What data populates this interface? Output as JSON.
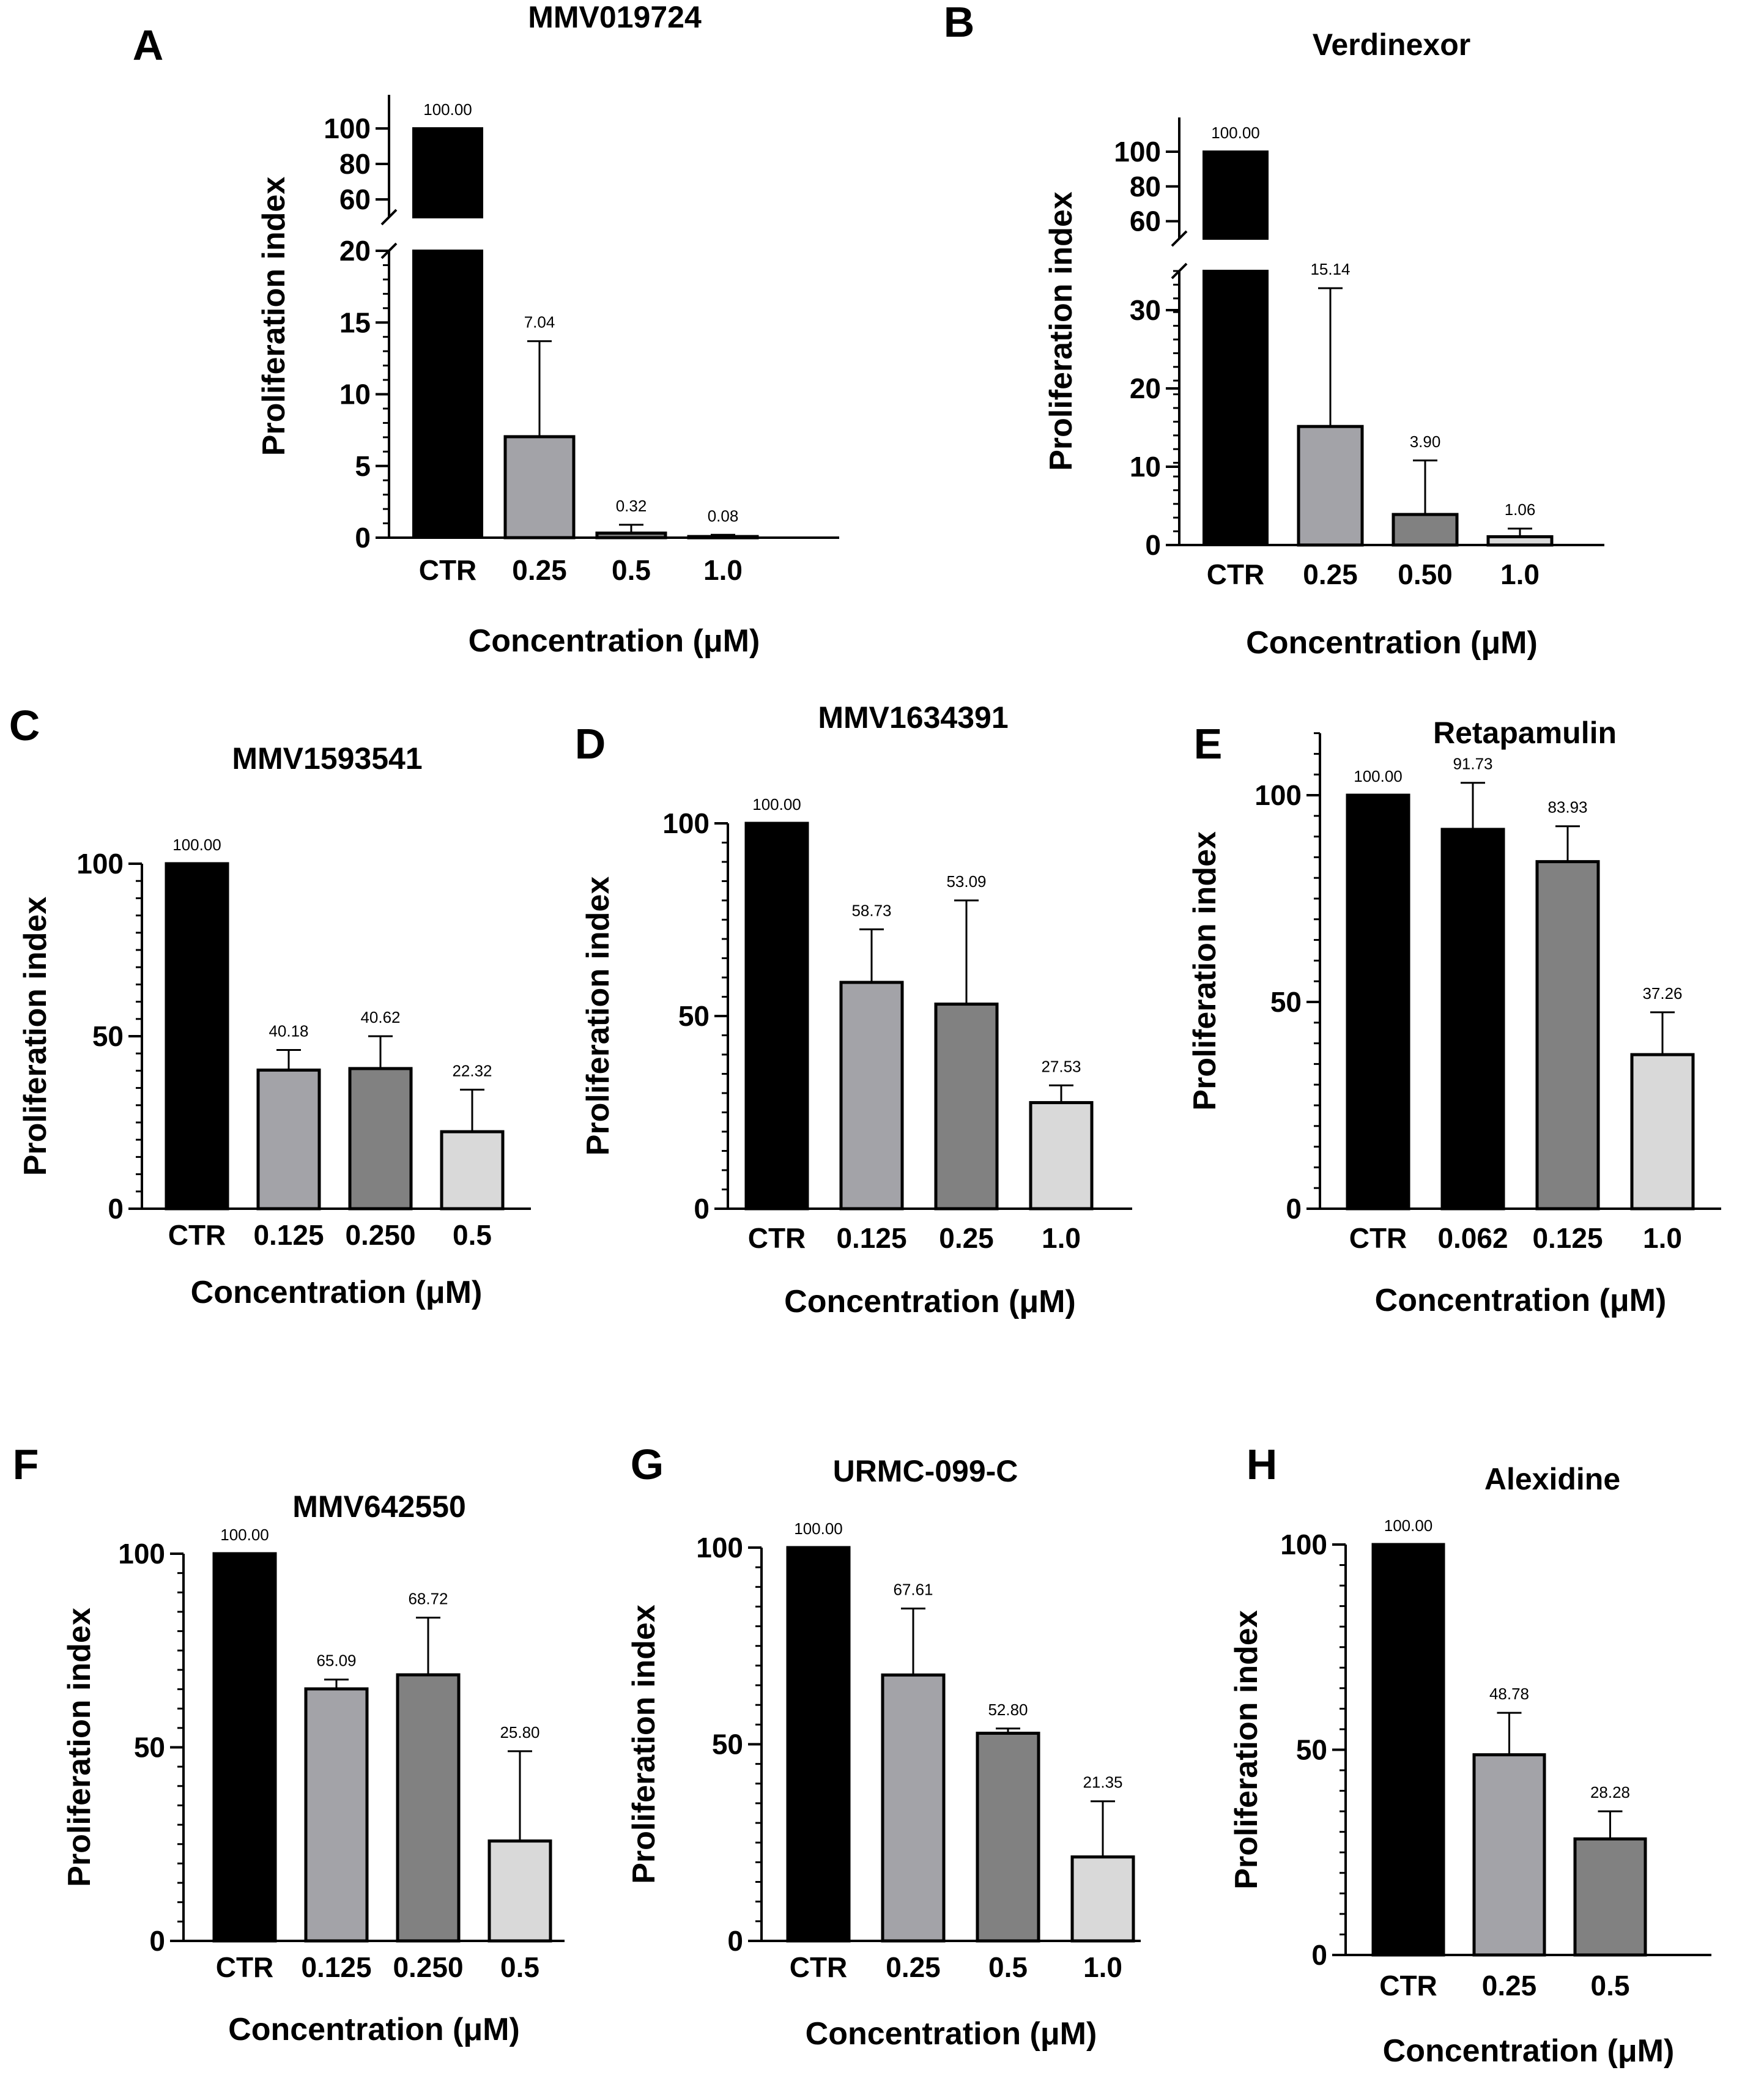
{
  "chart_data": [
    {
      "panel": "A",
      "title": "MMV019724",
      "type": "bar",
      "xlabel": "Concentration (μM)",
      "ylabel": "Proliferation index",
      "categories": [
        "CTR",
        "0.25",
        "0.5",
        "1.0"
      ],
      "values": [
        100.0,
        7.04,
        0.32,
        0.08
      ],
      "value_labels": [
        "100.00",
        "7.04",
        "0.32",
        "0.08"
      ],
      "error_upper": [
        100.0,
        13.7,
        0.9,
        0.2
      ],
      "colors": [
        "#000000",
        "#a3a3a8",
        "#818181",
        "#d9d9d9"
      ],
      "axis_break": {
        "lower": [
          0,
          20
        ],
        "upper": [
          50,
          100
        ]
      },
      "yticks": [
        0,
        5,
        10,
        15,
        20,
        60,
        80,
        100
      ]
    },
    {
      "panel": "B",
      "title": "Verdinexor",
      "type": "bar",
      "xlabel": "Concentration (μM)",
      "ylabel": "Proliferation index",
      "categories": [
        "CTR",
        "0.25",
        "0.50",
        "1.0"
      ],
      "values": [
        100.0,
        15.14,
        3.9,
        1.06
      ],
      "value_labels": [
        "100.00",
        "15.14",
        "3.90",
        "1.06"
      ],
      "error_upper": [
        100.0,
        32.8,
        10.8,
        2.1
      ],
      "colors": [
        "#000000",
        "#a3a3a8",
        "#818181",
        "#d9d9d9"
      ],
      "axis_break": {
        "lower": [
          0,
          35
        ],
        "upper": [
          50,
          100
        ]
      },
      "yticks": [
        0,
        10,
        20,
        30,
        60,
        80,
        100
      ]
    },
    {
      "panel": "C",
      "title": "MMV1593541",
      "type": "bar",
      "xlabel": "Concentration (μM)",
      "ylabel": "Proliferation index",
      "categories": [
        "CTR",
        "0.125",
        "0.250",
        "0.5"
      ],
      "values": [
        100.0,
        40.18,
        40.62,
        22.32
      ],
      "value_labels": [
        "100.00",
        "40.18",
        "40.62",
        "22.32"
      ],
      "error_upper": [
        100.0,
        46.0,
        50.0,
        34.5
      ],
      "colors": [
        "#000000",
        "#a3a3a8",
        "#818181",
        "#d9d9d9"
      ],
      "ylim": [
        0,
        100
      ],
      "yticks": [
        0,
        50,
        100
      ]
    },
    {
      "panel": "D",
      "title": "MMV1634391",
      "type": "bar",
      "xlabel": "Concentration (μM)",
      "ylabel": "Proliferation index",
      "categories": [
        "CTR",
        "0.125",
        "0.25",
        "1.0"
      ],
      "values": [
        100.0,
        58.73,
        53.09,
        27.53
      ],
      "value_labels": [
        "100.00",
        "58.73",
        "53.09",
        "27.53"
      ],
      "error_upper": [
        100.0,
        72.5,
        80.0,
        32.0
      ],
      "colors": [
        "#000000",
        "#a3a3a8",
        "#818181",
        "#d9d9d9"
      ],
      "ylim": [
        0,
        100
      ],
      "yticks": [
        0,
        50,
        100
      ]
    },
    {
      "panel": "E",
      "title": "Retapamulin",
      "type": "bar",
      "xlabel": "Concentration (μM)",
      "ylabel": "Proliferation index",
      "categories": [
        "CTR",
        "0.062",
        "0.125",
        "1.0"
      ],
      "values": [
        100.0,
        91.73,
        83.93,
        37.26
      ],
      "value_labels": [
        "100.00",
        "91.73",
        "83.93",
        "37.26"
      ],
      "error_upper": [
        100.0,
        103.0,
        92.5,
        47.5
      ],
      "colors": [
        "#000000",
        "#000000",
        "#818181",
        "#d9d9d9"
      ],
      "ylim": [
        0,
        115
      ],
      "yticks": [
        0,
        50,
        100
      ]
    },
    {
      "panel": "F",
      "title": "MMV642550",
      "type": "bar",
      "xlabel": "Concentration (μM)",
      "ylabel": "Proliferation index",
      "categories": [
        "CTR",
        "0.125",
        "0.250",
        "0.5"
      ],
      "values": [
        100.0,
        65.09,
        68.72,
        25.8
      ],
      "value_labels": [
        "100.00",
        "65.09",
        "68.72",
        "25.80"
      ],
      "error_upper": [
        100.0,
        67.5,
        83.5,
        49.0
      ],
      "colors": [
        "#000000",
        "#a3a3a8",
        "#818181",
        "#d9d9d9"
      ],
      "ylim": [
        0,
        100
      ],
      "yticks": [
        0,
        50,
        100
      ]
    },
    {
      "panel": "G",
      "title": "URMC-099-C",
      "type": "bar",
      "xlabel": "Concentration (μM)",
      "ylabel": "Proliferation index",
      "categories": [
        "CTR",
        "0.25",
        "0.5",
        "1.0"
      ],
      "values": [
        100.0,
        67.61,
        52.8,
        21.35
      ],
      "value_labels": [
        "100.00",
        "67.61",
        "52.80",
        "21.35"
      ],
      "error_upper": [
        100.0,
        84.5,
        54.0,
        35.5
      ],
      "colors": [
        "#000000",
        "#a3a3a8",
        "#818181",
        "#d9d9d9"
      ],
      "ylim": [
        0,
        100
      ],
      "yticks": [
        0,
        50,
        100
      ]
    },
    {
      "panel": "H",
      "title": "Alexidine",
      "type": "bar",
      "xlabel": "Concentration (μM)",
      "ylabel": "Proliferation index",
      "categories": [
        "CTR",
        "0.25",
        "0.5"
      ],
      "values": [
        100.0,
        48.78,
        28.28
      ],
      "value_labels": [
        "100.00",
        "48.78",
        "28.28"
      ],
      "error_upper": [
        100.0,
        59.0,
        35.0
      ],
      "colors": [
        "#000000",
        "#a3a3a8",
        "#818181"
      ],
      "ylim": [
        0,
        100
      ],
      "yticks": [
        0,
        50,
        100
      ]
    }
  ]
}
